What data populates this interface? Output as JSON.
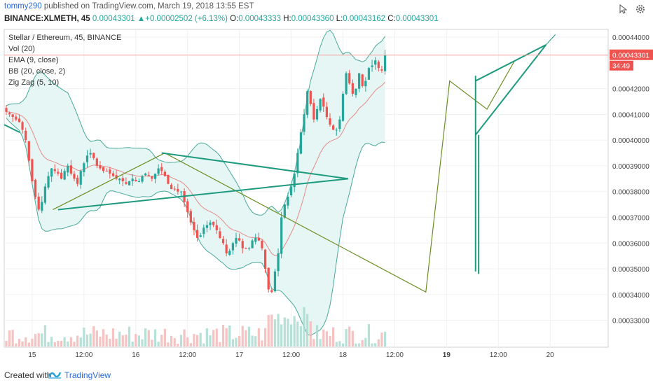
{
  "header": {
    "author": "tommy290",
    "published": "published on TradingView.com, March 19, 2018 13:55 EST",
    "symbol": "BINANCE:XLMETH, 45",
    "price": "0.00043301",
    "change_arrow": "▲",
    "change": "+0.00002502 (+6.13%)",
    "o_label": "O:",
    "o": "0.00043333",
    "h_label": "H:",
    "h": "0.00043360",
    "l_label": "L:",
    "l": "0.00043162",
    "c_label": "C:",
    "c": "0.00043301"
  },
  "footer": {
    "created": "Created with",
    "brand": "TradingView"
  },
  "icons": [
    "cursor-icon",
    "gear-icon",
    "tradingview-logo-icon"
  ],
  "colors": {
    "up": "#26a69a",
    "down": "#ef5350",
    "bb_fill": "#e3f5f3",
    "bb_line": "#4aa89b",
    "ema": "#e58a8a",
    "zigzag": "#6b8e23",
    "pattern": "#1e9b7e",
    "price_tag": "#ef5350"
  },
  "chart_data": {
    "type": "candlestick",
    "legend": [
      "Stellar / Ethereum, 45, BINANCE",
      "Vol (20)",
      "EMA (9, close)",
      "BB (20, close, 2)",
      "Zig Zag (5, 10)"
    ],
    "ylim": [
      0.000325,
      0.000443
    ],
    "y_ticks": [
      "0.00044000",
      "0.00043301",
      "0.00042000",
      "0.00041000",
      "0.00040000",
      "0.00039000",
      "0.00038000",
      "0.00037000",
      "0.00036000",
      "0.00035000",
      "0.00034000",
      "0.00033000"
    ],
    "price_tag": "0.00043301",
    "countdown": "34:49",
    "x_ticks": [
      "15",
      "12:00",
      "16",
      "12:00",
      "17",
      "12:00",
      "18",
      "12:00",
      "19",
      "12:00",
      "20"
    ],
    "x_tick_positions_days": [
      0,
      0.5,
      1,
      1.5,
      2,
      2.5,
      3,
      3.5,
      4,
      4.5,
      5
    ],
    "x_range_days": [
      -0.27,
      5.56
    ],
    "closes": [
      0.000411,
      0.00041,
      0.000409,
      0.000408,
      0.000407,
      0.000404,
      0.0004,
      0.000392,
      0.000384,
      0.000378,
      0.000373,
      0.000376,
      0.000382,
      0.000386,
      0.000389,
      0.000388,
      0.000387,
      0.000385,
      0.000388,
      0.00039,
      0.000387,
      0.000385,
      0.000383,
      0.000388,
      0.000391,
      0.000394,
      0.000395,
      0.000393,
      0.00039,
      0.000389,
      0.000388,
      0.000388,
      0.000387,
      0.000386,
      0.000385,
      0.000385,
      0.000384,
      0.000383,
      0.000384,
      0.000385,
      0.000384,
      0.000384,
      0.000386,
      0.000387,
      0.000386,
      0.000385,
      0.000387,
      0.000389,
      0.000388,
      0.000386,
      0.000383,
      0.000381,
      0.000381,
      0.00038,
      0.00038,
      0.000376,
      0.000372,
      0.000368,
      0.000365,
      0.000362,
      0.000363,
      0.000366,
      0.000367,
      0.000368,
      0.000367,
      0.000365,
      0.000362,
      0.00036,
      0.000356,
      0.000357,
      0.00036,
      0.000362,
      0.000361,
      0.000358,
      0.000358,
      0.000358,
      0.000361,
      0.000362,
      0.000361,
      0.000358,
      0.00035,
      0.000342,
      0.000341,
      0.000349,
      0.000356,
      0.00037,
      0.000375,
      0.000378,
      0.000382,
      0.000387,
      0.000395,
      0.000403,
      0.00041,
      0.000419,
      0.000414,
      0.000408,
      0.000412,
      0.000416,
      0.000413,
      0.000409,
      0.000406,
      0.000404,
      0.000404,
      0.000408,
      0.000418,
      0.000426,
      0.000422,
      0.000418,
      0.00042,
      0.000426,
      0.000421,
      0.000423,
      0.000428,
      0.000429,
      0.000431,
      0.000428,
      0.000427,
      0.000433
    ],
    "volume_max_note": "relative",
    "annotations": {
      "zigzag_points": [
        [
          0.2,
          0.000373
        ],
        [
          1.28,
          0.000395
        ],
        [
          3.8,
          0.000341
        ],
        [
          4.03,
          0.000423
        ],
        [
          4.39,
          0.000412
        ],
        [
          4.66,
          0.000431
        ]
      ],
      "triangle_lines": [
        [
          [
            0.25,
            0.000373
          ],
          [
            3.05,
            0.000385
          ]
        ],
        [
          [
            1.25,
            0.000395
          ],
          [
            3.05,
            0.000385
          ]
        ]
      ],
      "flagpole": [
        [
          4.28,
          0.000349
        ],
        [
          4.28,
          0.000425
        ]
      ],
      "flagpole2": [
        [
          4.31,
          0.000348
        ],
        [
          4.31,
          0.000402
        ]
      ],
      "wedge_lines": [
        [
          [
            4.28,
            0.000402
          ],
          [
            4.96,
            0.000437
          ]
        ],
        [
          [
            4.28,
            0.000423
          ],
          [
            4.96,
            0.000437
          ]
        ]
      ],
      "wedge_ext": [
        [
          4.96,
          0.000437
        ],
        [
          5.05,
          0.000441
        ]
      ],
      "trend_left": [
        [
          -0.27,
          0.000406
        ],
        [
          -0.12,
          0.000403
        ]
      ]
    }
  }
}
